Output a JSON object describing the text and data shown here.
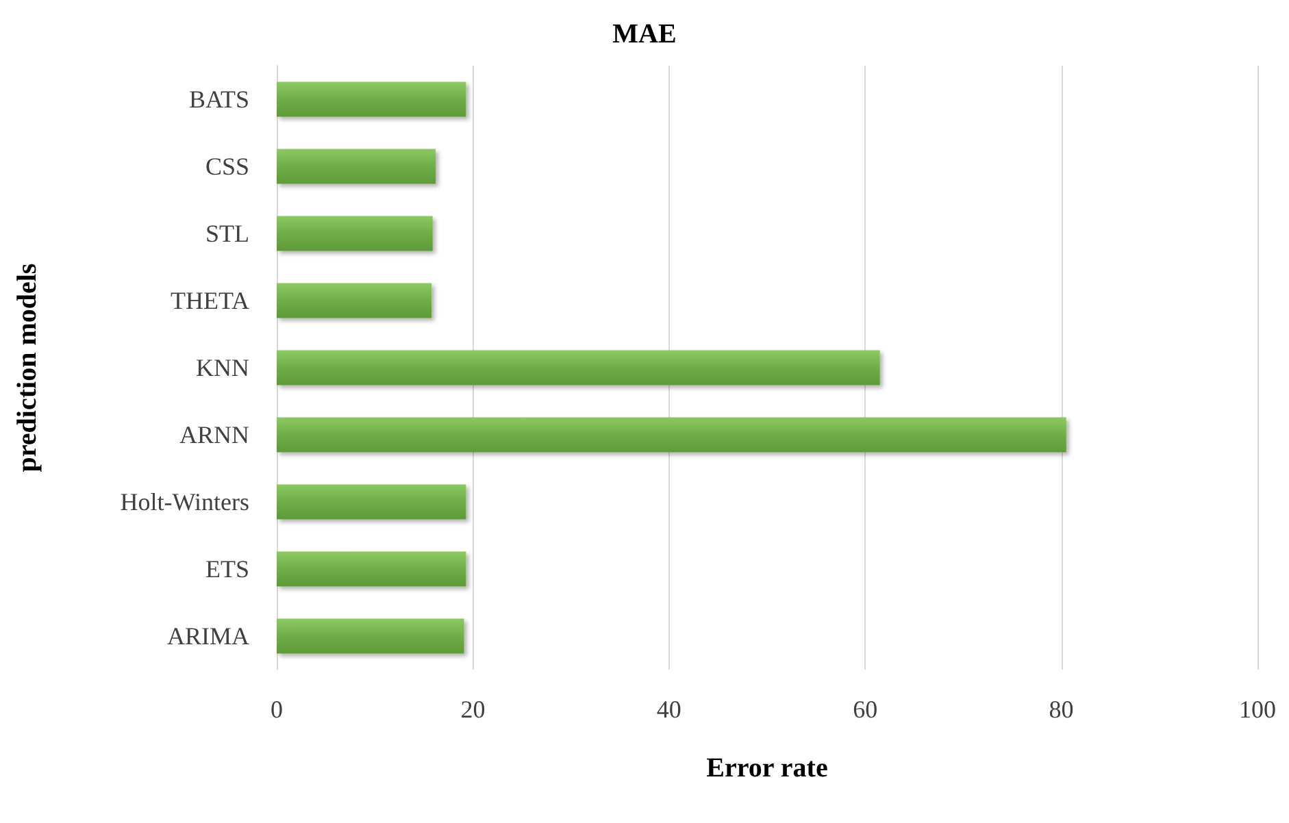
{
  "chart_data": {
    "type": "bar",
    "orientation": "horizontal",
    "title": "MAE",
    "xlabel": "Error rate",
    "ylabel": "prediction models",
    "categories": [
      "BATS",
      "CSS",
      "STL",
      "THETA",
      "KNN",
      "ARNN",
      "Holt-Winters",
      "ETS",
      "ARIMA"
    ],
    "values": [
      19.3,
      16.2,
      15.9,
      15.8,
      61.5,
      80.5,
      19.3,
      19.3,
      19.1
    ],
    "color": "#70ad47",
    "xlim": [
      0,
      100
    ],
    "xticks": [
      0,
      20,
      40,
      60,
      80,
      100
    ],
    "grid": "x"
  }
}
